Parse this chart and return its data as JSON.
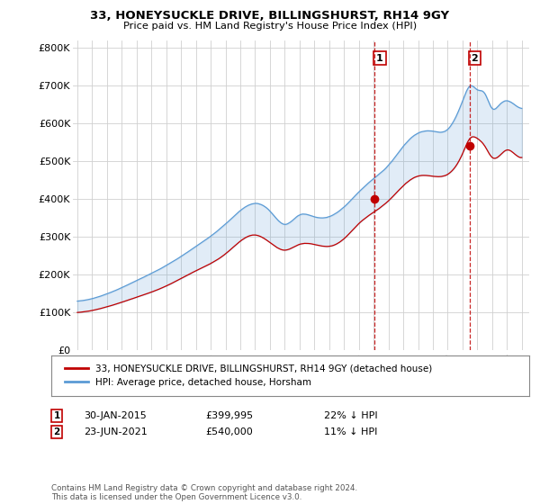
{
  "title": "33, HONEYSUCKLE DRIVE, BILLINGSHURST, RH14 9GY",
  "subtitle": "Price paid vs. HM Land Registry's House Price Index (HPI)",
  "ylabel_ticks": [
    "£0",
    "£100K",
    "£200K",
    "£300K",
    "£400K",
    "£500K",
    "£600K",
    "£700K",
    "£800K"
  ],
  "ytick_values": [
    0,
    100000,
    200000,
    300000,
    400000,
    500000,
    600000,
    700000,
    800000
  ],
  "ylim": [
    0,
    820000
  ],
  "legend_line1": "33, HONEYSUCKLE DRIVE, BILLINGSHURST, RH14 9GY (detached house)",
  "legend_line2": "HPI: Average price, detached house, Horsham",
  "annotation1_date": "30-JAN-2015",
  "annotation1_price": "£399,995",
  "annotation1_pct": "22% ↓ HPI",
  "annotation2_date": "23-JUN-2021",
  "annotation2_price": "£540,000",
  "annotation2_pct": "11% ↓ HPI",
  "footer": "Contains HM Land Registry data © Crown copyright and database right 2024.\nThis data is licensed under the Open Government Licence v3.0.",
  "hpi_color": "#5B9BD5",
  "price_color": "#C00000",
  "background_color": "#ffffff",
  "grid_color": "#d0d0d0",
  "sale1_x": 2015.08,
  "sale1_y": 399995,
  "sale2_x": 2021.48,
  "sale2_y": 540000,
  "xlim_left": 1994.7,
  "xlim_right": 2025.5
}
